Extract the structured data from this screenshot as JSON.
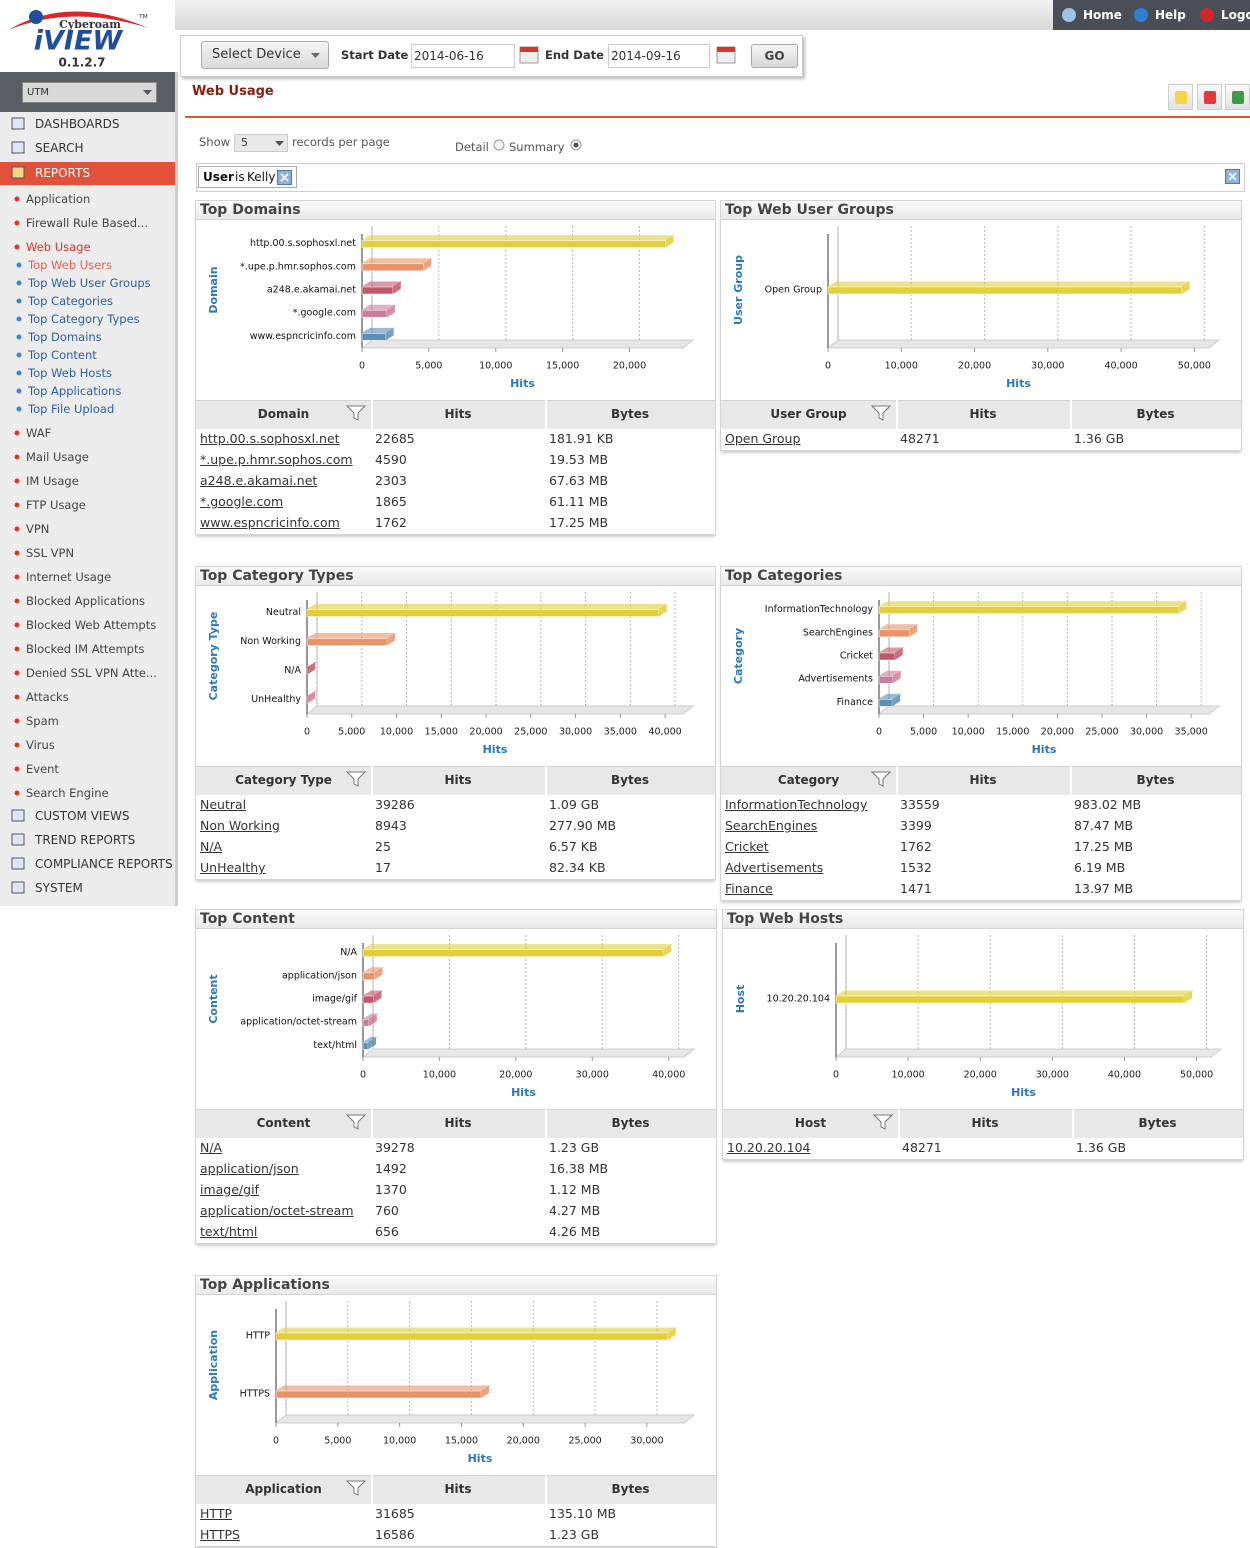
{
  "logo": {
    "brand": "Cyberoam",
    "product": "iVIEW",
    "version": "0.1.2.7",
    "tm": "TM"
  },
  "header_links": [
    "Home",
    "Help",
    "Logout"
  ],
  "sidebar": {
    "device": "UTM",
    "nav_top": [
      "DASHBOARDS",
      "SEARCH"
    ],
    "reports": "REPORTS",
    "reports_before": [
      "Application",
      "Firewall Rule Based..."
    ],
    "active_report": "Web Usage",
    "web_usage_reports": [
      "Top Web Users",
      "Top Web User Groups",
      "Top Categories",
      "Top Category Types",
      "Top Domains",
      "Top Content",
      "Top Web Hosts",
      "Top Applications",
      "Top File Upload"
    ],
    "reports_after": [
      "WAF",
      "Mail Usage",
      "IM Usage",
      "FTP Usage",
      "VPN",
      "SSL VPN",
      "Internet Usage",
      "Blocked Applications",
      "Blocked Web Attempts",
      "Blocked IM Attempts",
      "Denied SSL VPN Atte...",
      "Attacks",
      "Spam",
      "Virus",
      "Event",
      "Search Engine"
    ],
    "nav_bottom": [
      "CUSTOM VIEWS",
      "TREND REPORTS",
      "COMPLIANCE REPORTS",
      "SYSTEM"
    ]
  },
  "toolbar": {
    "device_button": "Select Device",
    "start_label": "Start Date",
    "start_date": "2014-06-16",
    "end_label": "End Date",
    "end_date": "2014-09-16",
    "go": "GO"
  },
  "page_title": "Web Usage",
  "paging": {
    "show": "Show",
    "per_page": "5",
    "suffix": "records per page",
    "detail": "Detail",
    "summary": "Summary"
  },
  "filter": {
    "field": "User",
    "operator": "is",
    "value": "Kelly"
  },
  "bar_colors": [
    "#e3cf3a",
    "#e8946a",
    "#c2566c",
    "#c97c9b",
    "#5b8fb6"
  ],
  "panels": [
    {
      "title": "Top Domains",
      "y_label": "Domain",
      "x_label": "Hits",
      "xlim": [
        0,
        24000
      ],
      "xticks": [
        0,
        {
          "value": 5000,
          "label": "5,000"
        },
        {
          "value": 10000,
          "label": "10,000"
        },
        {
          "value": 15000,
          "label": "15,000"
        },
        {
          "value": 20000,
          "label": "20,000"
        }
      ],
      "table": {
        "columns": [
          "Domain",
          "Hits",
          "Bytes"
        ],
        "rows": [
          [
            "http.00.s.sophosxl.net",
            22685,
            "181.91 KB"
          ],
          [
            "*.upe.p.hmr.sophos.com",
            4590,
            "19.53 MB"
          ],
          [
            "a248.e.akamai.net",
            2303,
            "67.63 MB"
          ],
          [
            "*.google.com",
            1865,
            "61.11 MB"
          ],
          [
            "www.espncricinfo.com",
            1762,
            "17.25 MB"
          ]
        ]
      }
    },
    {
      "title": "Top Web User Groups",
      "y_label": "User Group",
      "x_label": "Hits",
      "xlim": [
        0,
        52000
      ],
      "xticks": [
        0,
        {
          "value": 10000,
          "label": "10,000"
        },
        {
          "value": 20000,
          "label": "20,000"
        },
        {
          "value": 30000,
          "label": "30,000"
        },
        {
          "value": 40000,
          "label": "40,000"
        },
        {
          "value": 50000,
          "label": "50,000"
        }
      ],
      "table": {
        "columns": [
          "User Group",
          "Hits",
          "Bytes"
        ],
        "rows": [
          [
            "Open Group",
            48271,
            "1.36 GB"
          ]
        ]
      }
    },
    {
      "title": "Top Category Types",
      "y_label": "Category Type",
      "x_label": "Hits",
      "xlim": [
        0,
        42000
      ],
      "xticks": [
        0,
        {
          "value": 5000,
          "label": "5,000"
        },
        {
          "value": 10000,
          "label": "10,000"
        },
        {
          "value": 15000,
          "label": "15,000"
        },
        {
          "value": 20000,
          "label": "20,000"
        },
        {
          "value": 25000,
          "label": "25,000"
        },
        {
          "value": 30000,
          "label": "30,000"
        },
        {
          "value": 35000,
          "label": "35,000"
        },
        {
          "value": 40000,
          "label": "40,000"
        }
      ],
      "table": {
        "columns": [
          "Category Type",
          "Hits",
          "Bytes"
        ],
        "rows": [
          [
            "Neutral",
            39286,
            "1.09 GB"
          ],
          [
            "Non Working",
            8943,
            "277.90 MB"
          ],
          [
            "N/A",
            25,
            "6.57 KB"
          ],
          [
            "UnHealthy",
            17,
            "82.34 KB"
          ]
        ]
      }
    },
    {
      "title": "Top Categories",
      "y_label": "Category",
      "x_label": "Hits",
      "xlim": [
        0,
        37000
      ],
      "xticks": [
        0,
        {
          "value": 5000,
          "label": "5,000"
        },
        {
          "value": 10000,
          "label": "10,000"
        },
        {
          "value": 15000,
          "label": "15,000"
        },
        {
          "value": 20000,
          "label": "20,000"
        },
        {
          "value": 25000,
          "label": "25,000"
        },
        {
          "value": 30000,
          "label": "30,000"
        },
        {
          "value": 35000,
          "label": "35,000"
        }
      ],
      "table": {
        "columns": [
          "Category",
          "Hits",
          "Bytes"
        ],
        "rows": [
          [
            "InformationTechnology",
            33559,
            "983.02 MB"
          ],
          [
            "SearchEngines",
            3399,
            "87.47 MB"
          ],
          [
            "Cricket",
            1762,
            "17.25 MB"
          ],
          [
            "Advertisements",
            1532,
            "6.19 MB"
          ],
          [
            "Finance",
            1471,
            "13.97 MB"
          ]
        ]
      }
    },
    {
      "title": "Top Content",
      "y_label": "Content",
      "x_label": "Hits",
      "xlim": [
        0,
        42000
      ],
      "xticks": [
        0,
        {
          "value": 10000,
          "label": "10,000"
        },
        {
          "value": 20000,
          "label": "20,000"
        },
        {
          "value": 30000,
          "label": "30,000"
        },
        {
          "value": 40000,
          "label": "40,000"
        }
      ],
      "table": {
        "columns": [
          "Content",
          "Hits",
          "Bytes"
        ],
        "rows": [
          [
            "N/A",
            39278,
            "1.23 GB"
          ],
          [
            "application/json",
            1492,
            "16.38 MB"
          ],
          [
            "image/gif",
            1370,
            "1.12 MB"
          ],
          [
            "application/octet-stream",
            760,
            "4.27 MB"
          ],
          [
            "text/html",
            656,
            "4.26 MB"
          ]
        ]
      }
    },
    {
      "title": "Top Web Hosts",
      "y_label": "Host",
      "x_label": "Hits",
      "xlim": [
        0,
        52000
      ],
      "xticks": [
        0,
        {
          "value": 10000,
          "label": "10,000"
        },
        {
          "value": 20000,
          "label": "20,000"
        },
        {
          "value": 30000,
          "label": "30,000"
        },
        {
          "value": 40000,
          "label": "40,000"
        },
        {
          "value": 50000,
          "label": "50,000"
        }
      ],
      "table": {
        "columns": [
          "Host",
          "Hits",
          "Bytes"
        ],
        "rows": [
          [
            "10.20.20.104",
            48271,
            "1.36 GB"
          ]
        ]
      }
    },
    {
      "title": "Top Applications",
      "y_label": "Application",
      "x_label": "Hits",
      "xlim": [
        0,
        33000
      ],
      "xticks": [
        0,
        {
          "value": 5000,
          "label": "5,000"
        },
        {
          "value": 10000,
          "label": "10,000"
        },
        {
          "value": 15000,
          "label": "15,000"
        },
        {
          "value": 20000,
          "label": "20,000"
        },
        {
          "value": 25000,
          "label": "25,000"
        },
        {
          "value": 30000,
          "label": "30,000"
        }
      ],
      "table": {
        "columns": [
          "Application",
          "Hits",
          "Bytes"
        ],
        "rows": [
          [
            "HTTP",
            31685,
            "135.10 MB"
          ],
          [
            "HTTPS",
            16586,
            "1.23 GB"
          ]
        ]
      }
    }
  ]
}
